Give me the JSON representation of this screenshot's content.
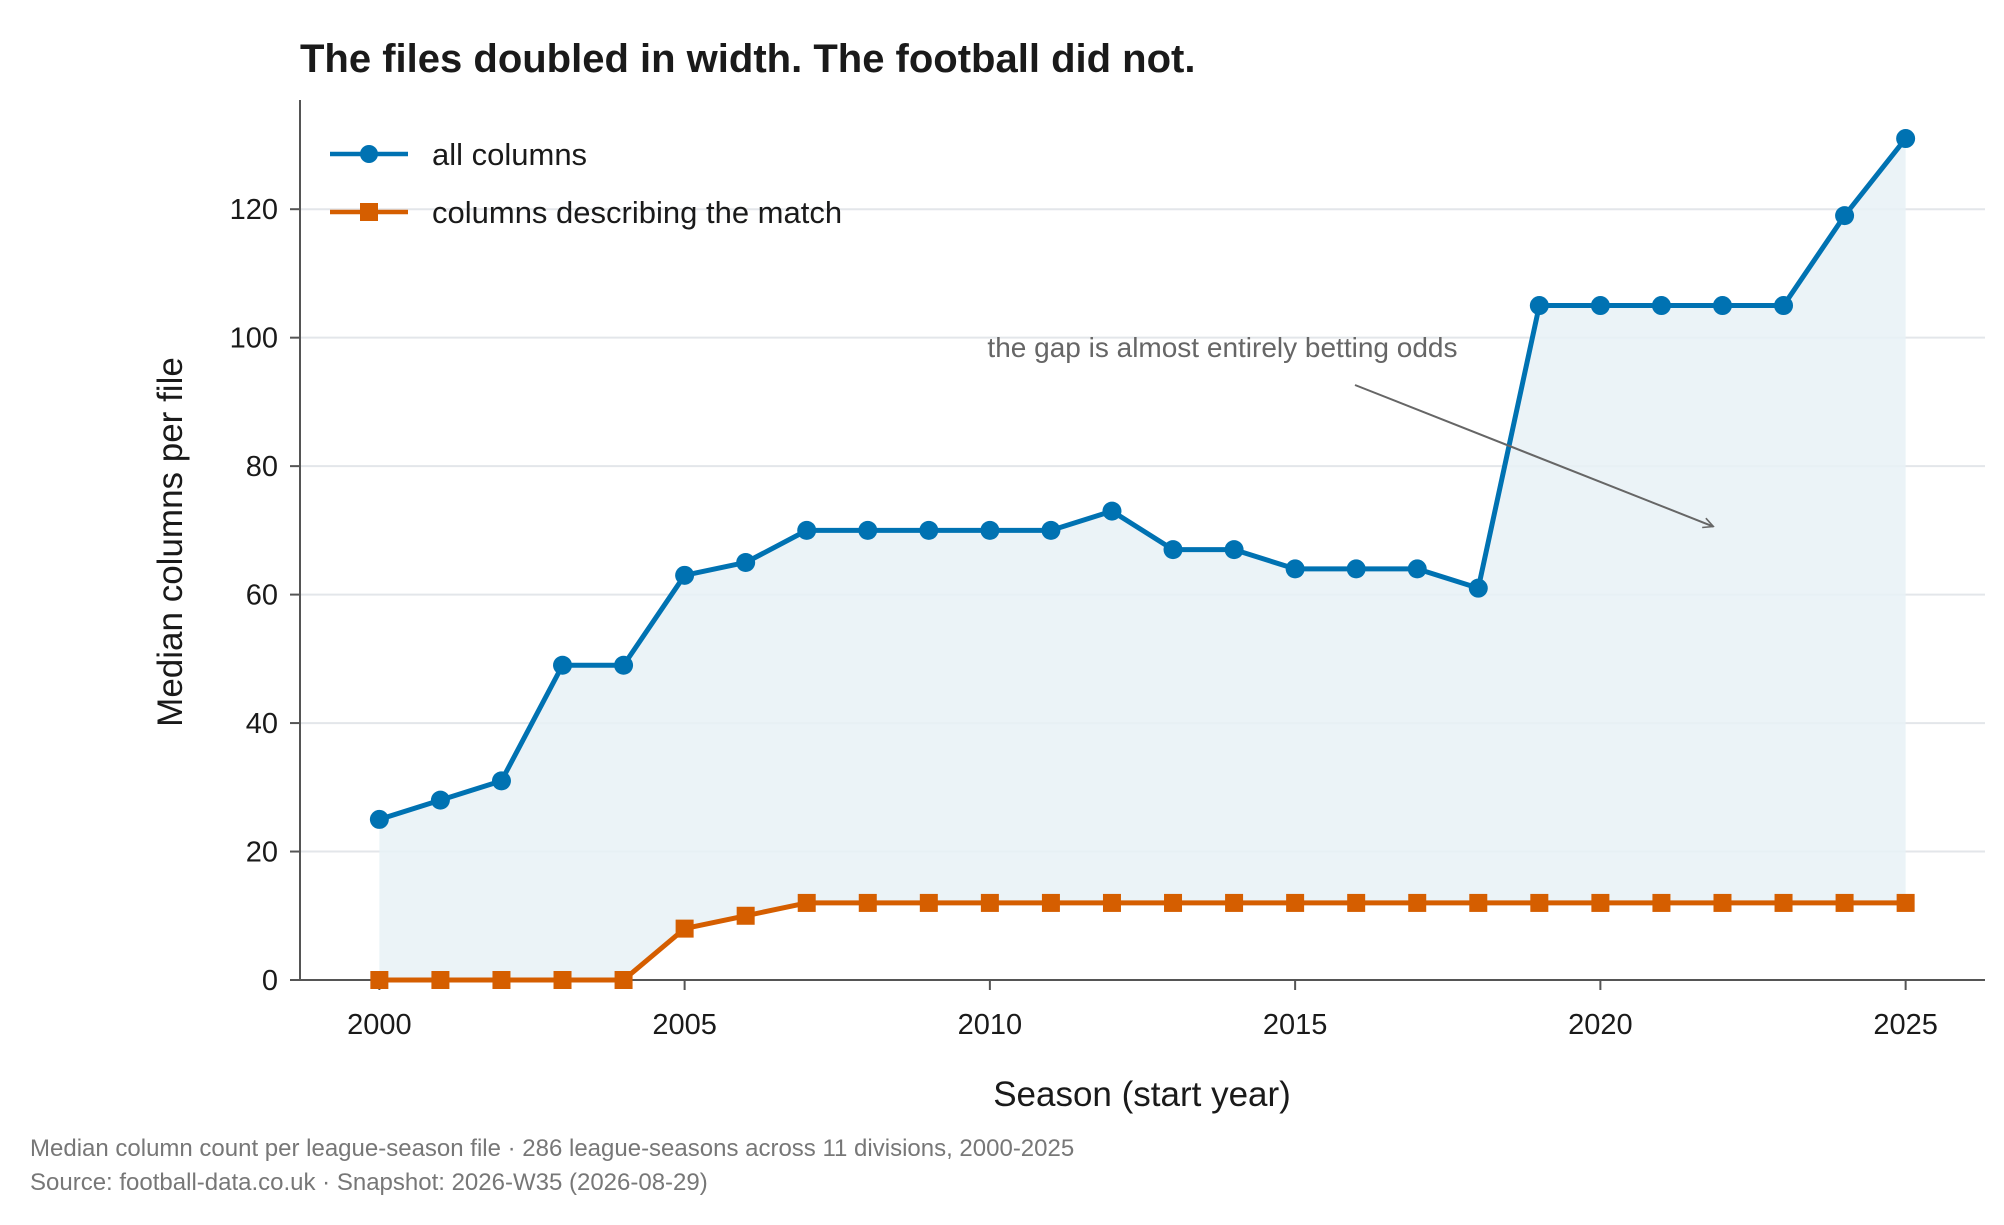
{
  "colors": {
    "all_columns": "#0072b2",
    "match_columns": "#d55e00",
    "gap_fill": "#e8f1f6",
    "grid": "#e3e6ea",
    "axis": "#555555",
    "annotation": "#666666"
  },
  "footer": {
    "line1": "Median column count per league-season file  ·  286 league-seasons across 11 divisions, 2000-2025",
    "line2": "Source: football-data.co.uk  ·  Snapshot: 2026-W35 (2026-08-29)"
  },
  "chart_data": {
    "type": "line",
    "title": "The files doubled in width. The football did not.",
    "xlabel": "Season (start year)",
    "ylabel": "Median columns per file",
    "xlim": [
      1998.7,
      2026.3
    ],
    "ylim": [
      0,
      137
    ],
    "xticks": [
      2000,
      2005,
      2010,
      2015,
      2020,
      2025
    ],
    "yticks": [
      0,
      20,
      40,
      60,
      80,
      100,
      120
    ],
    "grid": "horizontal",
    "legend_position": "top-left",
    "x": [
      2000,
      2001,
      2002,
      2003,
      2004,
      2005,
      2006,
      2007,
      2008,
      2009,
      2010,
      2011,
      2012,
      2013,
      2014,
      2015,
      2016,
      2017,
      2018,
      2019,
      2020,
      2021,
      2022,
      2023,
      2024,
      2025
    ],
    "series": [
      {
        "name": "all columns",
        "marker": "circle",
        "values": [
          25,
          28,
          31,
          49,
          49,
          63,
          65,
          70,
          70,
          70,
          70,
          70,
          73,
          67,
          67,
          64,
          64,
          64,
          61,
          105,
          105,
          105,
          105,
          105,
          119,
          131
        ]
      },
      {
        "name": "columns describing the match",
        "marker": "square",
        "values": [
          0,
          0,
          0,
          0,
          0,
          8,
          10,
          12,
          12,
          12,
          12,
          12,
          12,
          12,
          12,
          12,
          12,
          12,
          12,
          12,
          12,
          12,
          12,
          12,
          12,
          12
        ]
      }
    ],
    "annotations": [
      {
        "text": "the gap is almost entirely betting odds",
        "text_at": [
          2009.96,
          97
        ],
        "arrow_to": [
          2021.85,
          70.6
        ]
      }
    ]
  }
}
